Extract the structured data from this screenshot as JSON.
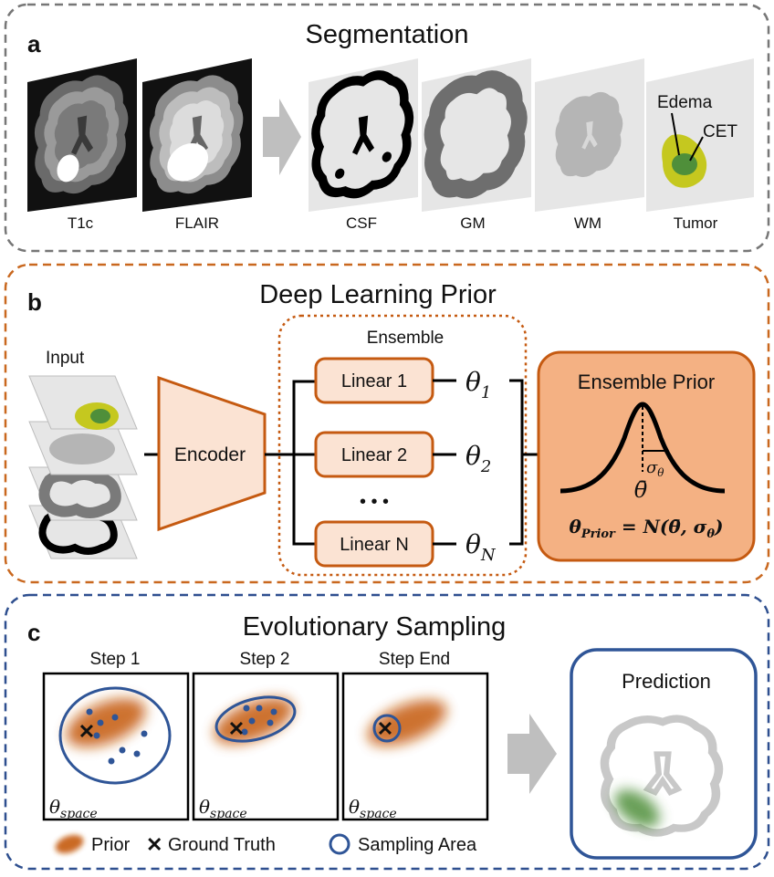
{
  "panel_a": {
    "letter": "a",
    "title": "Segmentation",
    "images": [
      "T1c",
      "FLAIR",
      "CSF",
      "GM",
      "WM",
      "Tumor"
    ],
    "tumor_labels": {
      "edema": "Edema",
      "cet": "CET"
    }
  },
  "panel_b": {
    "letter": "b",
    "title": "Deep Learning Prior",
    "input_label": "Input",
    "encoder_label": "Encoder",
    "ensemble_label": "Ensemble",
    "heads": [
      {
        "label": "Linear 1",
        "theta_base": "θ",
        "theta_sub": "1"
      },
      {
        "label": "Linear 2",
        "theta_base": "θ",
        "theta_sub": "2"
      },
      {
        "label": "Linear N",
        "theta_base": "θ",
        "theta_sub": "N"
      }
    ],
    "ellipsis": "• • •",
    "prior_box": {
      "title": "Ensemble Prior",
      "sigma_base": "σ",
      "sigma_sub": "θ",
      "mean_label": "θ̄",
      "formula_lhs_base": "θ",
      "formula_lhs_sub": "Prior",
      "formula_rhs": "= N(θ̄, σ",
      "formula_rhs_sub": "θ",
      "formula_close": ")"
    }
  },
  "panel_c": {
    "letter": "c",
    "title": "Evolutionary Sampling",
    "steps": [
      {
        "label": "Step 1",
        "space_base": "θ",
        "space_sub": "space"
      },
      {
        "label": "Step 2",
        "space_base": "θ",
        "space_sub": "space"
      },
      {
        "label": "Step End",
        "space_base": "θ",
        "space_sub": "space"
      }
    ],
    "prediction_label": "Prediction",
    "legend": {
      "prior": "Prior",
      "ground_truth": "Ground Truth",
      "sampling_area": "Sampling Area"
    }
  },
  "colors": {
    "panel_a_border": "#777777",
    "panel_b_border": "#c9681f",
    "panel_c_border": "#2e4f8f",
    "orange": "#c55a11",
    "orange_fill": "#fbe3d3",
    "prior_box_fill": "#f4b183",
    "blue": "#2f5597",
    "tumor_yellow": "#c5c81f",
    "tumor_green": "#4f8f3a"
  }
}
